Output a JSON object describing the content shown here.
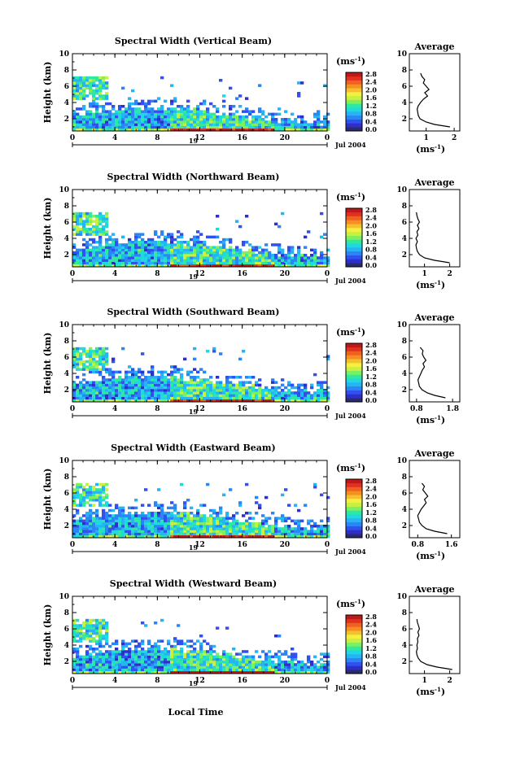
{
  "figure": {
    "xlabel": "Local Time",
    "date_label": "Jul 2004",
    "day_label": "19"
  },
  "colorbar": {
    "unit": "(ms",
    "unit_sup": "-1",
    "unit_close": ")",
    "ticks": [
      "0.0",
      "0.4",
      "0.8",
      "1.2",
      "1.6",
      "2.0",
      "2.4",
      "2.8"
    ],
    "colors": [
      "#2a2a6e",
      "#2f2fc8",
      "#3050f0",
      "#2a86f5",
      "#26b4f5",
      "#20d8e0",
      "#30e8a0",
      "#7cf060",
      "#c8f040",
      "#f5f040",
      "#f5c030",
      "#f59020",
      "#f06020",
      "#e03020",
      "#c01818"
    ]
  },
  "colors": {
    "low": "#3050f0",
    "mid": "#20d8e0",
    "high": "#f06020",
    "peak": "#c01818",
    "line": "#000000"
  },
  "chart_data": [
    {
      "type": "heatmap",
      "title": "Spectral Width (Vertical Beam)",
      "ylabel": "Height (km)",
      "xticks": [
        "0",
        "4",
        "8",
        "12",
        "16",
        "20",
        "0"
      ],
      "yticks": [
        "2",
        "4",
        "6",
        "8",
        "10"
      ],
      "xlim": [
        0,
        24
      ],
      "ylim": [
        0.5,
        10
      ],
      "colorbar_range": [
        0.0,
        2.8
      ],
      "average_profile": {
        "title": "Average",
        "xlabel": "(ms",
        "xlabel_sup": "-1",
        "xlabel_close": ")",
        "xticks": [
          "1",
          "2"
        ],
        "xlim": [
          0.4,
          2.2
        ],
        "height": [
          1.0,
          1.3,
          1.6,
          2.0,
          2.4,
          2.8,
          3.2,
          3.6,
          4.0,
          4.4,
          4.8,
          5.2,
          5.6,
          6.0,
          6.4,
          6.8,
          7.2,
          7.6
        ],
        "width": [
          1.85,
          1.3,
          1.0,
          0.78,
          0.72,
          0.7,
          0.68,
          0.72,
          0.8,
          0.9,
          1.05,
          0.95,
          1.1,
          1.0,
          0.9,
          0.95,
          0.85,
          0.8
        ]
      }
    },
    {
      "type": "heatmap",
      "title": "Spectral Width (Northward Beam)",
      "ylabel": "Height (km)",
      "xticks": [
        "0",
        "4",
        "8",
        "12",
        "16",
        "20",
        "0"
      ],
      "yticks": [
        "2",
        "4",
        "6",
        "8",
        "10"
      ],
      "xlim": [
        0,
        24
      ],
      "ylim": [
        0.5,
        10
      ],
      "colorbar_range": [
        0.0,
        2.8
      ],
      "average_profile": {
        "title": "Average",
        "xlabel": "(ms",
        "xlabel_sup": "-1",
        "xlabel_close": ")",
        "xticks": [
          "1",
          "2"
        ],
        "xlim": [
          0.4,
          2.4
        ],
        "height": [
          1.0,
          1.3,
          1.6,
          2.0,
          2.4,
          2.8,
          3.2,
          3.6,
          4.0,
          4.4,
          4.8,
          5.2,
          5.6,
          6.0,
          6.4,
          6.8,
          7.2
        ],
        "width": [
          2.0,
          1.4,
          1.0,
          0.8,
          0.72,
          0.68,
          0.66,
          0.72,
          0.66,
          0.74,
          0.7,
          0.78,
          0.72,
          0.8,
          0.74,
          0.7,
          0.68
        ]
      }
    },
    {
      "type": "heatmap",
      "title": "Spectral Width (Southward Beam)",
      "ylabel": "Height (km)",
      "xticks": [
        "0",
        "4",
        "8",
        "12",
        "16",
        "20",
        "0"
      ],
      "yticks": [
        "2",
        "4",
        "6",
        "8",
        "10"
      ],
      "xlim": [
        0,
        24
      ],
      "ylim": [
        0.5,
        10
      ],
      "colorbar_range": [
        0.0,
        2.8
      ],
      "average_profile": {
        "title": "Average",
        "xlabel": "(ms",
        "xlabel_sup": "-1",
        "xlabel_close": ")",
        "xticks": [
          "0.8",
          "1.8"
        ],
        "xlim": [
          0.6,
          2.0
        ],
        "height": [
          1.0,
          1.3,
          1.6,
          2.0,
          2.4,
          2.8,
          3.2,
          3.6,
          4.0,
          4.4,
          4.8,
          5.2,
          5.6,
          6.0,
          6.4,
          6.8,
          7.2
        ],
        "width": [
          1.6,
          1.3,
          1.1,
          0.95,
          0.88,
          0.86,
          0.84,
          0.88,
          0.92,
          0.96,
          1.02,
          0.98,
          1.06,
          1.0,
          0.96,
          0.98,
          0.9
        ]
      }
    },
    {
      "type": "heatmap",
      "title": "Spectral Width (Eastward Beam)",
      "ylabel": "Height (km)",
      "xticks": [
        "0",
        "4",
        "8",
        "12",
        "16",
        "20",
        "0"
      ],
      "yticks": [
        "2",
        "4",
        "6",
        "8",
        "10"
      ],
      "xlim": [
        0,
        24
      ],
      "ylim": [
        0.5,
        10
      ],
      "colorbar_range": [
        0.0,
        2.8
      ],
      "average_profile": {
        "title": "Average",
        "xlabel": "(ms",
        "xlabel_sup": "-1",
        "xlabel_close": ")",
        "xticks": [
          "0.8",
          "1.6"
        ],
        "xlim": [
          0.6,
          1.8
        ],
        "height": [
          1.0,
          1.3,
          1.6,
          2.0,
          2.4,
          2.8,
          3.2,
          3.6,
          4.0,
          4.4,
          4.8,
          5.2,
          5.6,
          6.0,
          6.4,
          6.8,
          7.2
        ],
        "width": [
          1.5,
          1.2,
          1.0,
          0.9,
          0.84,
          0.82,
          0.8,
          0.84,
          0.88,
          0.94,
          1.0,
          0.96,
          1.04,
          0.98,
          0.92,
          0.96,
          0.9
        ]
      }
    },
    {
      "type": "heatmap",
      "title": "Spectral Width (Westward Beam)",
      "ylabel": "Height (km)",
      "xticks": [
        "0",
        "4",
        "8",
        "12",
        "16",
        "20",
        "0"
      ],
      "yticks": [
        "2",
        "4",
        "6",
        "8",
        "10"
      ],
      "xlim": [
        0,
        24
      ],
      "ylim": [
        0.5,
        10
      ],
      "colorbar_range": [
        0.0,
        2.8
      ],
      "average_profile": {
        "title": "Average",
        "xlabel": "(ms",
        "xlabel_sup": "-1",
        "xlabel_close": ")",
        "xticks": [
          "1",
          "2"
        ],
        "xlim": [
          0.4,
          2.4
        ],
        "height": [
          1.0,
          1.3,
          1.6,
          2.0,
          2.4,
          2.8,
          3.2,
          3.6,
          4.0,
          4.4,
          4.8,
          5.2,
          5.6,
          6.0,
          6.4,
          6.8,
          7.2
        ],
        "width": [
          2.1,
          1.5,
          1.1,
          0.85,
          0.75,
          0.7,
          0.68,
          0.72,
          0.7,
          0.74,
          0.72,
          0.78,
          0.74,
          0.8,
          0.76,
          0.72,
          0.7
        ]
      }
    }
  ]
}
